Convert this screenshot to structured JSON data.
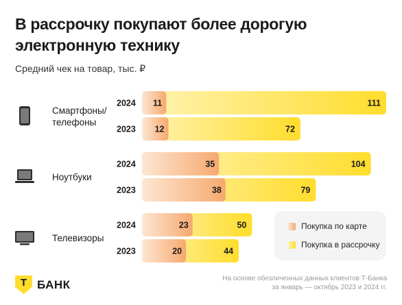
{
  "header": {
    "title": "В рассрочку покупают более дорогую электронную технику",
    "subtitle": "Средний чек на товар, тыс. ₽"
  },
  "colors": {
    "card": "#f6a96f",
    "card_light": "#fde6d2",
    "installment": "#ffdd2d",
    "installment_light": "#fff3b3",
    "text": "#1b1b1b"
  },
  "chart_data": {
    "type": "bar",
    "orientation": "horizontal",
    "stacked": false,
    "categories": [
      {
        "label": "Смартфоны/ телефоны",
        "icon": "smartphone-icon",
        "years": [
          {
            "year": "2024",
            "card": 11,
            "installment": 111
          },
          {
            "year": "2023",
            "card": 12,
            "installment": 72
          }
        ]
      },
      {
        "label": "Ноутбуки",
        "icon": "laptop-icon",
        "years": [
          {
            "year": "2024",
            "card": 35,
            "installment": 104
          },
          {
            "year": "2023",
            "card": 38,
            "installment": 79
          }
        ]
      },
      {
        "label": "Телевизоры",
        "icon": "tv-icon",
        "years": [
          {
            "year": "2024",
            "card": 23,
            "installment": 50
          },
          {
            "year": "2023",
            "card": 20,
            "installment": 44
          }
        ]
      }
    ],
    "series": [
      {
        "key": "card",
        "name": "Покупка по карте"
      },
      {
        "key": "installment",
        "name": "Покупка в рассрочку"
      }
    ],
    "xlim": [
      0,
      111
    ],
    "grid": false,
    "legend_position": "bottom-right"
  },
  "legend": {
    "card_label": "Покупка по карте",
    "installment_label": "Покупка в рассрочку"
  },
  "footer": {
    "logo_letter": "Т",
    "logo_text": "БАНК",
    "note_line1": "На основе обезличенных данных клиентов Т-Банка",
    "note_line2": "за январь — октябрь 2023 и 2024 гг."
  }
}
